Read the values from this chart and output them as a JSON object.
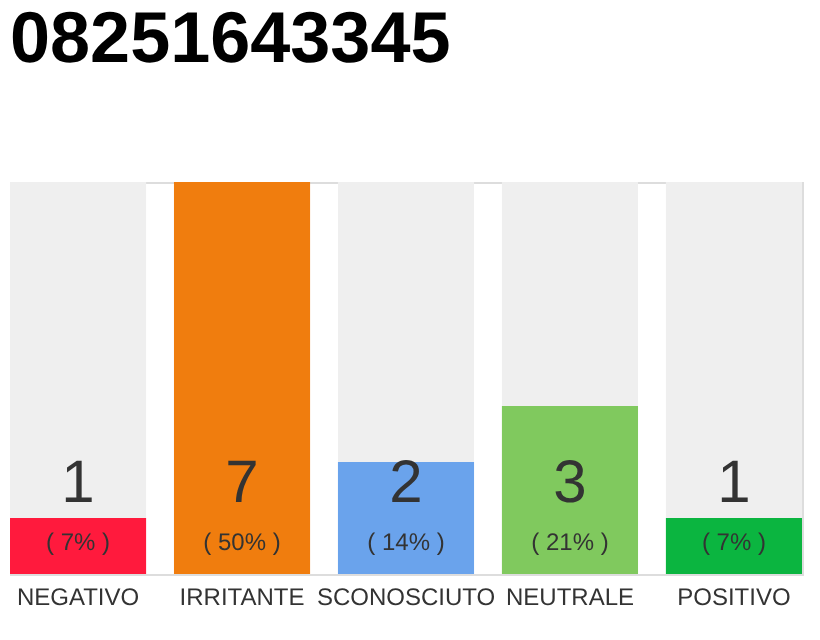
{
  "chart_data": {
    "type": "bar",
    "title": "08251643345",
    "categories": [
      "NEGATIVO",
      "IRRITANTE",
      "SCONOSCIUTO",
      "NEUTRALE",
      "POSITIVO"
    ],
    "values": [
      1,
      7,
      2,
      3,
      1
    ],
    "colors": [
      "#ff1a3d",
      "#f07d0e",
      "#6aa3ec",
      "#80c95e",
      "#0bb540"
    ],
    "ylim": [
      0,
      7
    ],
    "data_labels": true,
    "annotations": [
      "( 7% )",
      "( 50% )",
      "( 14% )",
      "( 21% )",
      "( 7% )"
    ]
  }
}
